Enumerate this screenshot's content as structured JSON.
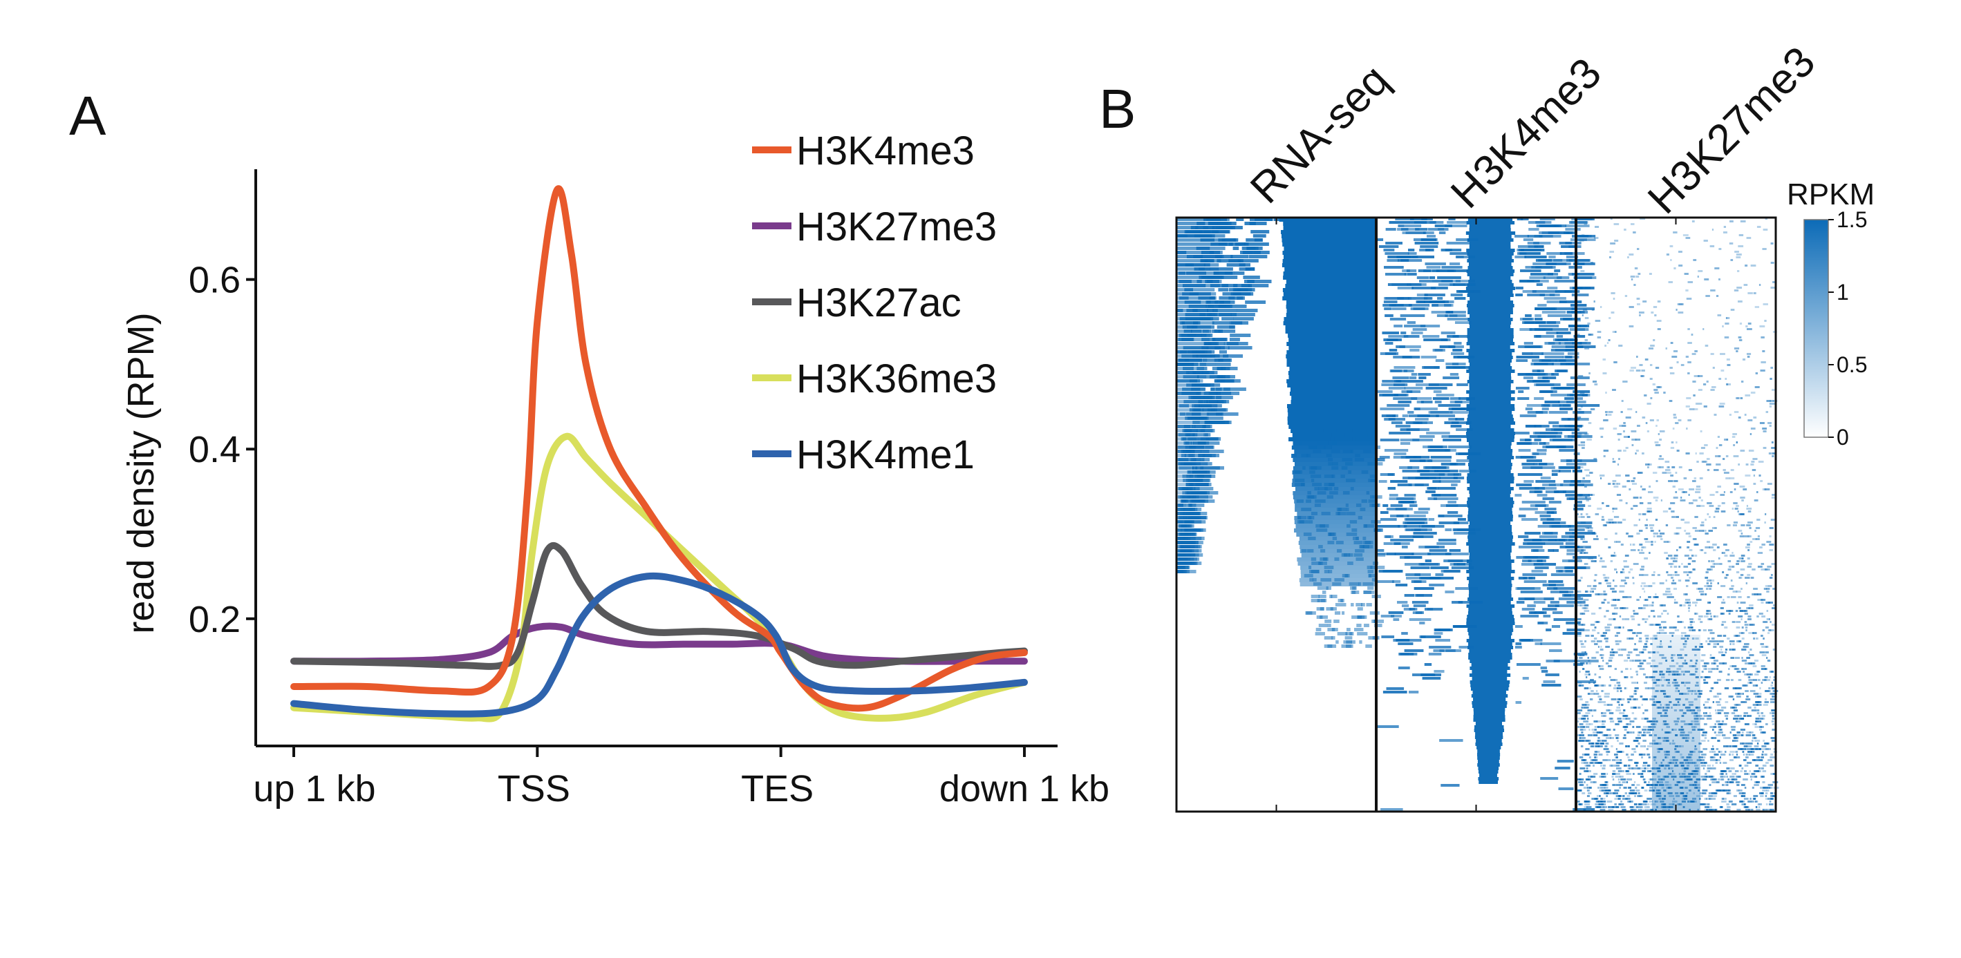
{
  "panels": {
    "a": {
      "letter": "A"
    },
    "b": {
      "letter": "B"
    }
  },
  "chart_data": [
    {
      "type": "line",
      "title": "",
      "xlabel": "",
      "ylabel": "read density (RPM)",
      "x_ticks": [
        {
          "pos": 0,
          "label": "up 1 kb"
        },
        {
          "pos": 1,
          "label": "TSS"
        },
        {
          "pos": 2,
          "label": "TES"
        },
        {
          "pos": 3,
          "label": "down 1 kb"
        }
      ],
      "xlim": [
        -0.15,
        3.15
      ],
      "ylim": [
        0.05,
        0.73
      ],
      "y_ticks": [
        {
          "value": 0.2,
          "label": "0.2"
        },
        {
          "value": 0.4,
          "label": "0.4"
        },
        {
          "value": 0.6,
          "label": "0.6"
        }
      ],
      "legend_position": "top-right",
      "series": [
        {
          "name": "H3K4me3",
          "color": "#e8592b",
          "points": [
            [
              0,
              0.12
            ],
            [
              0.3,
              0.12
            ],
            [
              0.6,
              0.115
            ],
            [
              0.8,
              0.12
            ],
            [
              0.9,
              0.18
            ],
            [
              0.96,
              0.35
            ],
            [
              1.0,
              0.55
            ],
            [
              1.08,
              0.705
            ],
            [
              1.14,
              0.63
            ],
            [
              1.2,
              0.5
            ],
            [
              1.3,
              0.4
            ],
            [
              1.45,
              0.33
            ],
            [
              1.6,
              0.27
            ],
            [
              1.8,
              0.21
            ],
            [
              1.95,
              0.18
            ],
            [
              2.0,
              0.16
            ],
            [
              2.1,
              0.12
            ],
            [
              2.2,
              0.1
            ],
            [
              2.35,
              0.095
            ],
            [
              2.5,
              0.11
            ],
            [
              2.7,
              0.14
            ],
            [
              2.85,
              0.155
            ],
            [
              3.0,
              0.16
            ]
          ]
        },
        {
          "name": "H3K27me3",
          "color": "#7a3b8c",
          "points": [
            [
              0,
              0.15
            ],
            [
              0.3,
              0.15
            ],
            [
              0.6,
              0.152
            ],
            [
              0.8,
              0.16
            ],
            [
              0.9,
              0.18
            ],
            [
              1.0,
              0.19
            ],
            [
              1.1,
              0.19
            ],
            [
              1.2,
              0.18
            ],
            [
              1.4,
              0.17
            ],
            [
              1.6,
              0.17
            ],
            [
              1.8,
              0.17
            ],
            [
              2.0,
              0.17
            ],
            [
              2.2,
              0.155
            ],
            [
              2.5,
              0.15
            ],
            [
              2.8,
              0.15
            ],
            [
              3.0,
              0.15
            ]
          ]
        },
        {
          "name": "H3K27ac",
          "color": "#58585a",
          "points": [
            [
              0,
              0.15
            ],
            [
              0.4,
              0.148
            ],
            [
              0.7,
              0.145
            ],
            [
              0.85,
              0.145
            ],
            [
              0.92,
              0.16
            ],
            [
              0.98,
              0.22
            ],
            [
              1.04,
              0.28
            ],
            [
              1.1,
              0.28
            ],
            [
              1.18,
              0.24
            ],
            [
              1.28,
              0.205
            ],
            [
              1.45,
              0.185
            ],
            [
              1.7,
              0.185
            ],
            [
              1.9,
              0.18
            ],
            [
              2.05,
              0.165
            ],
            [
              2.15,
              0.15
            ],
            [
              2.3,
              0.145
            ],
            [
              2.5,
              0.15
            ],
            [
              2.7,
              0.155
            ],
            [
              2.9,
              0.16
            ],
            [
              3.0,
              0.162
            ]
          ]
        },
        {
          "name": "H3K36me3",
          "color": "#d8df5c",
          "points": [
            [
              0,
              0.095
            ],
            [
              0.3,
              0.09
            ],
            [
              0.6,
              0.085
            ],
            [
              0.75,
              0.083
            ],
            [
              0.85,
              0.09
            ],
            [
              0.93,
              0.16
            ],
            [
              0.98,
              0.28
            ],
            [
              1.04,
              0.38
            ],
            [
              1.12,
              0.415
            ],
            [
              1.2,
              0.39
            ],
            [
              1.3,
              0.36
            ],
            [
              1.45,
              0.32
            ],
            [
              1.6,
              0.28
            ],
            [
              1.75,
              0.24
            ],
            [
              1.9,
              0.2
            ],
            [
              2.0,
              0.165
            ],
            [
              2.1,
              0.12
            ],
            [
              2.2,
              0.095
            ],
            [
              2.3,
              0.085
            ],
            [
              2.45,
              0.083
            ],
            [
              2.6,
              0.09
            ],
            [
              2.8,
              0.11
            ],
            [
              3.0,
              0.125
            ]
          ]
        },
        {
          "name": "H3K4me1",
          "color": "#2e63ad",
          "points": [
            [
              0,
              0.1
            ],
            [
              0.3,
              0.092
            ],
            [
              0.6,
              0.088
            ],
            [
              0.85,
              0.09
            ],
            [
              1.0,
              0.105
            ],
            [
              1.08,
              0.14
            ],
            [
              1.18,
              0.2
            ],
            [
              1.3,
              0.235
            ],
            [
              1.45,
              0.25
            ],
            [
              1.6,
              0.245
            ],
            [
              1.75,
              0.23
            ],
            [
              1.9,
              0.205
            ],
            [
              1.98,
              0.18
            ],
            [
              2.05,
              0.14
            ],
            [
              2.15,
              0.12
            ],
            [
              2.3,
              0.115
            ],
            [
              2.55,
              0.115
            ],
            [
              2.75,
              0.118
            ],
            [
              3.0,
              0.125
            ]
          ]
        }
      ]
    },
    {
      "type": "heatmap",
      "title": "",
      "tracks": [
        "RNA-seq",
        "H3K4me3",
        "H3K27me3"
      ],
      "color": "#0c6bb7",
      "colorbar": {
        "title": "RPKM",
        "range": [
          0,
          1.5
        ],
        "ticks": [
          {
            "value": 0,
            "label": "0"
          },
          {
            "value": 0.5,
            "label": "0.5"
          },
          {
            "value": 1,
            "label": "1"
          },
          {
            "value": 1.5,
            "label": "1.5"
          }
        ]
      }
    }
  ]
}
